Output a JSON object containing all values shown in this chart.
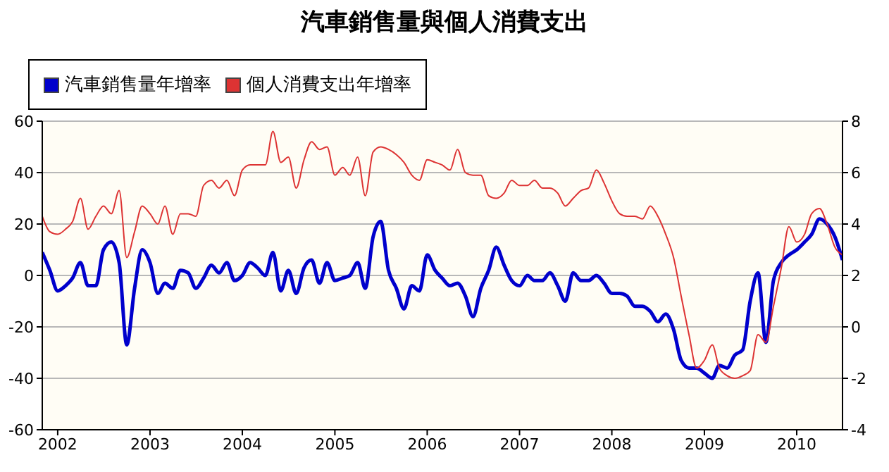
{
  "chart_data": {
    "type": "line",
    "title": "汽車銷售量與個人消費支出",
    "x": [
      "2001-11",
      "2001-12",
      "2002-01",
      "2002-02",
      "2002-03",
      "2002-04",
      "2002-05",
      "2002-06",
      "2002-07",
      "2002-08",
      "2002-09",
      "2002-10",
      "2002-11",
      "2002-12",
      "2003-01",
      "2003-02",
      "2003-03",
      "2003-04",
      "2003-05",
      "2003-06",
      "2003-07",
      "2003-08",
      "2003-09",
      "2003-10",
      "2003-11",
      "2003-12",
      "2004-01",
      "2004-02",
      "2004-03",
      "2004-04",
      "2004-05",
      "2004-06",
      "2004-07",
      "2004-08",
      "2004-09",
      "2004-10",
      "2004-11",
      "2004-12",
      "2005-01",
      "2005-02",
      "2005-03",
      "2005-04",
      "2005-05",
      "2005-06",
      "2005-07",
      "2005-08",
      "2005-09",
      "2005-10",
      "2005-11",
      "2005-12",
      "2006-01",
      "2006-02",
      "2006-03",
      "2006-04",
      "2006-05",
      "2006-06",
      "2006-07",
      "2006-08",
      "2006-09",
      "2006-10",
      "2006-11",
      "2006-12",
      "2007-01",
      "2007-02",
      "2007-03",
      "2007-04",
      "2007-05",
      "2007-06",
      "2007-07",
      "2007-08",
      "2007-09",
      "2007-10",
      "2007-11",
      "2007-12",
      "2008-01",
      "2008-02",
      "2008-03",
      "2008-04",
      "2008-05",
      "2008-06",
      "2008-07",
      "2008-08",
      "2008-09",
      "2008-10",
      "2008-11",
      "2008-12",
      "2009-01",
      "2009-02",
      "2009-03",
      "2009-04",
      "2009-05",
      "2009-06",
      "2009-07",
      "2009-08",
      "2009-09",
      "2009-10",
      "2009-11",
      "2009-12",
      "2010-01",
      "2010-02",
      "2010-03",
      "2010-04",
      "2010-05",
      "2010-06",
      "2010-07"
    ],
    "series": [
      {
        "name": "汽車銷售量年增率",
        "color": "#0000cc",
        "values": [
          9,
          2,
          -6,
          -4,
          -1,
          5,
          -4,
          -4,
          10,
          13,
          5,
          -27,
          -5,
          10,
          5,
          -7,
          -3,
          -5,
          2,
          1,
          -5,
          -1,
          4,
          1,
          5,
          -2,
          0,
          5,
          3,
          0,
          9,
          -6,
          2,
          -7,
          3,
          6,
          -3,
          5,
          -2,
          -1,
          0,
          5,
          -5,
          15,
          21,
          2,
          -5,
          -13,
          -4,
          -6,
          8,
          2,
          -1,
          -4,
          -3,
          -8,
          -16,
          -5,
          2,
          11,
          4,
          -2,
          -4,
          0,
          -2,
          -2,
          1,
          -4,
          -10,
          1,
          -2,
          -2,
          0,
          -3,
          -7,
          -7,
          -8,
          -12,
          -12,
          -14,
          -18,
          -15,
          -21,
          -33,
          -36,
          -36,
          -38,
          -40,
          -35,
          -36,
          -31,
          -29,
          -10,
          1,
          -26,
          -2,
          5,
          8,
          10,
          13,
          16,
          22,
          20,
          15,
          6
        ]
      },
      {
        "name": "個人消費支出年增率",
        "color": "#dd3333",
        "axis": "y2",
        "values": [
          4.3,
          3.7,
          3.6,
          3.8,
          4.1,
          5.0,
          3.8,
          4.3,
          4.7,
          4.4,
          5.3,
          2.7,
          3.7,
          4.7,
          4.4,
          4.0,
          4.7,
          3.6,
          4.4,
          4.4,
          4.3,
          5.5,
          5.7,
          5.4,
          5.7,
          5.1,
          6.1,
          6.3,
          6.3,
          6.3,
          7.6,
          6.4,
          6.6,
          5.4,
          6.5,
          7.2,
          6.9,
          7.0,
          5.9,
          6.2,
          5.9,
          6.6,
          5.1,
          6.8,
          7.0,
          6.9,
          6.7,
          6.4,
          5.9,
          5.7,
          6.5,
          6.4,
          6.3,
          6.1,
          6.9,
          6.0,
          5.9,
          5.9,
          5.1,
          5.0,
          5.2,
          5.7,
          5.5,
          5.5,
          5.7,
          5.4,
          5.4,
          5.2,
          4.7,
          5.0,
          5.3,
          5.4,
          6.1,
          5.6,
          4.9,
          4.4,
          4.3,
          4.3,
          4.2,
          4.7,
          4.3,
          3.6,
          2.7,
          1.2,
          -0.3,
          -1.6,
          -1.3,
          -0.7,
          -1.6,
          -1.9,
          -2.0,
          -1.9,
          -1.7,
          -0.3,
          -0.6,
          0.8,
          2.3,
          3.9,
          3.3,
          3.6,
          4.4,
          4.6,
          4.0,
          3.1,
          2.8
        ]
      }
    ],
    "xlim": [
      "2001-11",
      "2010-07"
    ],
    "xticks": [
      "2002",
      "2003",
      "2004",
      "2005",
      "2006",
      "2007",
      "2008",
      "2009",
      "2010"
    ],
    "ylim": [
      -60,
      60
    ],
    "yticks": [
      -60,
      -40,
      -20,
      0,
      20,
      40,
      60
    ],
    "y2lim": [
      -4,
      8
    ],
    "y2ticks": [
      -4,
      -2,
      0,
      2,
      4,
      6,
      8
    ],
    "grid": "y",
    "legend": "top left",
    "marker": "none",
    "line_style": "solid"
  }
}
